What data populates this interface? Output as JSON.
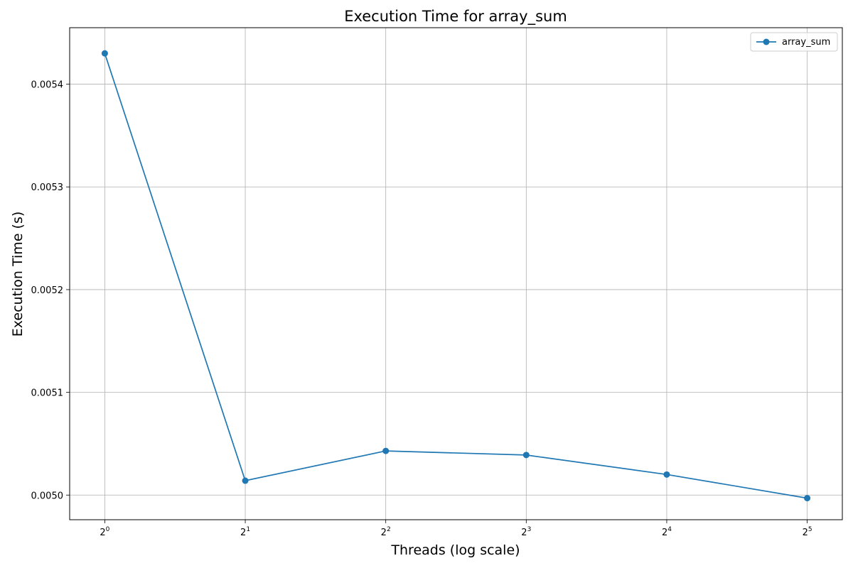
{
  "chart_data": {
    "type": "line",
    "title": "Execution Time for array_sum",
    "xlabel": "Threads (log scale)",
    "ylabel": "Execution Time (s)",
    "x_scale": "log2",
    "x": [
      1,
      2,
      4,
      8,
      16,
      32
    ],
    "x_tick_labels": [
      {
        "base": "2",
        "exp": "0"
      },
      {
        "base": "2",
        "exp": "1"
      },
      {
        "base": "2",
        "exp": "2"
      },
      {
        "base": "2",
        "exp": "3"
      },
      {
        "base": "2",
        "exp": "4"
      },
      {
        "base": "2",
        "exp": "5"
      }
    ],
    "y_ticks": [
      0.005,
      0.0051,
      0.0052,
      0.0053,
      0.0054
    ],
    "y_tick_labels": [
      "0.0050",
      "0.0051",
      "0.0052",
      "0.0053",
      "0.0054"
    ],
    "ylim": [
      0.004976,
      0.005455
    ],
    "grid": true,
    "legend_position": "top-right",
    "series": [
      {
        "name": "array_sum",
        "color": "#1f77b4",
        "marker": "circle",
        "values": [
          0.00543,
          0.005014,
          0.005043,
          0.005039,
          0.00502,
          0.004997
        ]
      }
    ]
  }
}
